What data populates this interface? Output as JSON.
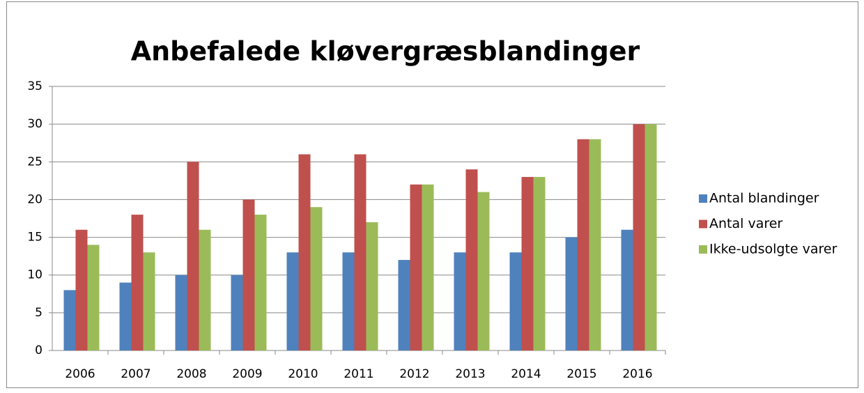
{
  "chart_data": {
    "type": "bar",
    "title": "Anbefalede kløvergræsblandinger",
    "categories": [
      "2006",
      "2007",
      "2008",
      "2009",
      "2010",
      "2011",
      "2012",
      "2013",
      "2014",
      "2015",
      "2016"
    ],
    "series": [
      {
        "name": "Antal blandinger",
        "color": "#4f81bd",
        "values": [
          8,
          9,
          10,
          10,
          13,
          13,
          12,
          13,
          13,
          15,
          16
        ]
      },
      {
        "name": "Antal varer",
        "color": "#c0504d",
        "values": [
          16,
          18,
          25,
          20,
          26,
          26,
          22,
          24,
          23,
          28,
          30
        ]
      },
      {
        "name": "Ikke-udsolgte varer",
        "color": "#9bbb59",
        "values": [
          14,
          13,
          16,
          18,
          19,
          17,
          22,
          21,
          23,
          28,
          30
        ]
      }
    ],
    "ylim": [
      0,
      35
    ],
    "yticks": [
      0,
      5,
      10,
      15,
      20,
      25,
      30,
      35
    ],
    "grid": true,
    "legend": "right"
  }
}
